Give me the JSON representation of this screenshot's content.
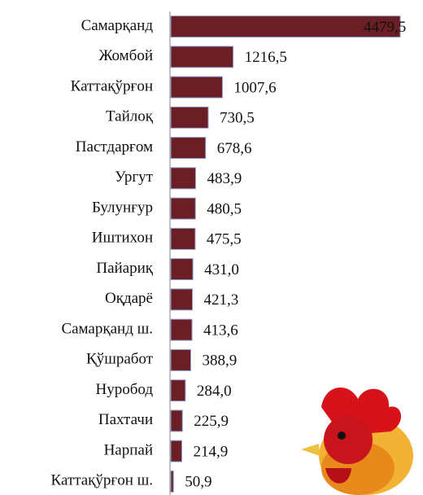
{
  "chart_data": {
    "type": "bar",
    "orientation": "horizontal",
    "categories": [
      "Самарқанд",
      "Жомбой",
      "Каттақўрғон",
      "Тайлоқ",
      "Пастдарғом",
      "Ургут",
      "Булунғур",
      "Иштихон",
      "Пайариқ",
      "Оқдарё",
      "Самарқанд ш.",
      "Қўшработ",
      "Нуробод",
      "Пахтачи",
      "Нарпай",
      "Каттақўрғон ш."
    ],
    "values": [
      4479.5,
      1216.5,
      1007.6,
      730.5,
      678.6,
      483.9,
      480.5,
      475.5,
      431.0,
      421.3,
      413.6,
      388.9,
      284.0,
      225.9,
      214.9,
      50.9
    ],
    "value_labels": [
      "4479,5",
      "1216,5",
      "1007,6",
      "730,5",
      "678,6",
      "483,9",
      "480,5",
      "475,5",
      "431,0",
      "421,3",
      "413,6",
      "388,9",
      "284,0",
      "225,9",
      "214,9",
      "50,9"
    ],
    "color": "#6b1f24",
    "xlim": [
      0,
      4500
    ]
  }
}
